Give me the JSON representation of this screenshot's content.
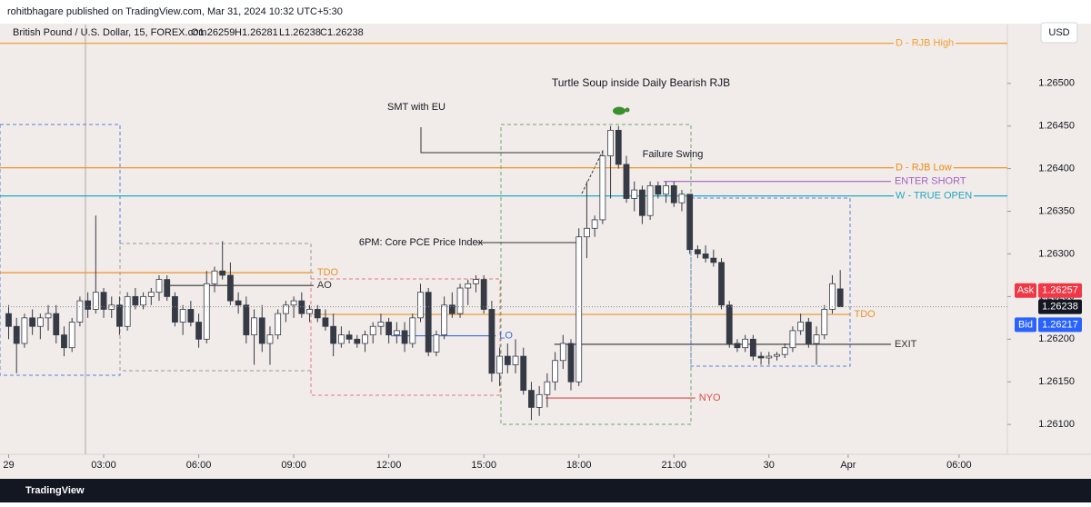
{
  "header": {
    "publisher": "rohitbhagare published on TradingView.com, Mar 31, 2024 10:32 UTC+5:30",
    "symbol": "British Pound / U.S. Dollar, 15, FOREX.com",
    "ohlc": [
      "O1.26259",
      "H1.26281",
      "L1.26238",
      "C1.26238"
    ],
    "currency": "USD",
    "footer": "TradingView"
  },
  "chart_data": {
    "type": "candlestick",
    "open": [
      1.2623,
      1.26215,
      1.26195,
      1.26225,
      1.26215,
      1.26225,
      1.2623,
      1.26205,
      1.2619,
      1.2622,
      1.26245,
      1.26235,
      1.26255,
      1.26235,
      1.2624,
      1.26215,
      1.2625,
      1.2624,
      1.2625,
      1.26255,
      1.2627,
      1.2625,
      1.2622,
      1.26235,
      1.2622,
      1.262,
      1.26265,
      1.2628,
      1.26275,
      1.26245,
      1.2624,
      1.26205,
      1.26225,
      1.26195,
      1.26205,
      1.2623,
      1.2624,
      1.26245,
      1.2623,
      1.26235,
      1.26225,
      1.26215,
      1.26195,
      1.26205,
      1.262,
      1.26195,
      1.26205,
      1.26215,
      1.2622,
      1.26205,
      1.2621,
      1.26195,
      1.26225,
      1.26255,
      1.26185,
      1.26205,
      1.2624,
      1.2623,
      1.2626,
      1.26265,
      1.2627,
      1.26235,
      1.2616,
      1.2618,
      1.2617,
      1.2618,
      1.2614,
      1.2612,
      1.26135,
      1.2615,
      1.26175,
      1.26195,
      1.2615,
      1.2632,
      1.2633,
      1.2634,
      1.26415,
      1.26445,
      1.26405,
      1.26365,
      1.26375,
      1.26345,
      1.2638,
      1.2637,
      1.2638,
      1.2636,
      1.2637,
      1.26305,
      1.263,
      1.26295,
      1.2629,
      1.2624,
      1.26195,
      1.2619,
      1.262,
      1.2618,
      1.26178,
      1.2618,
      1.26182,
      1.2619,
      1.2621,
      1.2622,
      1.26195,
      1.26205,
      1.26235,
      1.26259
    ],
    "high": [
      1.2624,
      1.26225,
      1.2623,
      1.26235,
      1.2623,
      1.2624,
      1.2624,
      1.26215,
      1.26225,
      1.2625,
      1.26255,
      1.26345,
      1.2626,
      1.2625,
      1.2625,
      1.26255,
      1.2626,
      1.26255,
      1.2626,
      1.26275,
      1.26275,
      1.26255,
      1.2624,
      1.26245,
      1.2623,
      1.2628,
      1.26285,
      1.26315,
      1.2629,
      1.26255,
      1.2625,
      1.26235,
      1.2624,
      1.26215,
      1.26235,
      1.26245,
      1.2625,
      1.26255,
      1.2624,
      1.2624,
      1.26235,
      1.2623,
      1.26215,
      1.2621,
      1.26205,
      1.2621,
      1.2622,
      1.2623,
      1.26225,
      1.2622,
      1.2622,
      1.2623,
      1.26265,
      1.2626,
      1.2621,
      1.2625,
      1.26255,
      1.26265,
      1.2627,
      1.26275,
      1.26275,
      1.26245,
      1.2619,
      1.26195,
      1.262,
      1.2619,
      1.2615,
      1.26145,
      1.2616,
      1.26185,
      1.26205,
      1.262,
      1.2633,
      1.26385,
      1.26345,
      1.2642,
      1.2645,
      1.2645,
      1.26415,
      1.26385,
      1.2638,
      1.26385,
      1.26385,
      1.26385,
      1.26385,
      1.26375,
      1.2637,
      1.2631,
      1.2631,
      1.26305,
      1.26295,
      1.26245,
      1.262,
      1.26205,
      1.26205,
      1.26185,
      1.26185,
      1.26185,
      1.26195,
      1.26215,
      1.2623,
      1.26225,
      1.26215,
      1.2624,
      1.26275,
      1.26281
    ],
    "low": [
      1.262,
      1.2616,
      1.2619,
      1.26205,
      1.262,
      1.2621,
      1.26195,
      1.2618,
      1.26185,
      1.26215,
      1.26225,
      1.2623,
      1.26225,
      1.26225,
      1.26205,
      1.2621,
      1.26235,
      1.26235,
      1.2624,
      1.26245,
      1.26245,
      1.26215,
      1.26205,
      1.26215,
      1.2619,
      1.26195,
      1.26255,
      1.2627,
      1.2624,
      1.2623,
      1.26195,
      1.2617,
      1.26185,
      1.2617,
      1.262,
      1.2622,
      1.26225,
      1.26225,
      1.2622,
      1.2622,
      1.2621,
      1.2618,
      1.2619,
      1.26195,
      1.2619,
      1.26185,
      1.26195,
      1.26205,
      1.26195,
      1.26195,
      1.26185,
      1.2619,
      1.2622,
      1.2618,
      1.2618,
      1.262,
      1.26225,
      1.26225,
      1.2624,
      1.26255,
      1.2623,
      1.2615,
      1.26145,
      1.2616,
      1.2616,
      1.26135,
      1.26105,
      1.2611,
      1.2612,
      1.2614,
      1.26165,
      1.2614,
      1.26145,
      1.26295,
      1.2632,
      1.26335,
      1.26365,
      1.264,
      1.2636,
      1.2635,
      1.26335,
      1.2634,
      1.26365,
      1.2636,
      1.26355,
      1.2635,
      1.263,
      1.26295,
      1.2629,
      1.26285,
      1.26235,
      1.2619,
      1.26185,
      1.26185,
      1.26175,
      1.2617,
      1.2617,
      1.26175,
      1.26178,
      1.26185,
      1.26205,
      1.2619,
      1.2617,
      1.262,
      1.2623,
      1.26238
    ],
    "close": [
      1.26215,
      1.26195,
      1.26225,
      1.26215,
      1.26225,
      1.2623,
      1.26205,
      1.2619,
      1.2622,
      1.26245,
      1.26235,
      1.26255,
      1.26235,
      1.2624,
      1.26215,
      1.2625,
      1.2624,
      1.2625,
      1.26255,
      1.2627,
      1.2625,
      1.2622,
      1.26235,
      1.2622,
      1.262,
      1.26265,
      1.2628,
      1.26275,
      1.26245,
      1.2624,
      1.26205,
      1.26225,
      1.26195,
      1.26205,
      1.2623,
      1.2624,
      1.26245,
      1.2623,
      1.26235,
      1.26225,
      1.26215,
      1.26195,
      1.26205,
      1.262,
      1.26195,
      1.26205,
      1.26215,
      1.2622,
      1.26205,
      1.2621,
      1.26195,
      1.26225,
      1.26255,
      1.26185,
      1.26205,
      1.2624,
      1.2623,
      1.2626,
      1.26265,
      1.2627,
      1.26235,
      1.2616,
      1.2618,
      1.2617,
      1.2618,
      1.2614,
      1.2612,
      1.26135,
      1.2615,
      1.26175,
      1.26195,
      1.2615,
      1.2632,
      1.2633,
      1.2634,
      1.26415,
      1.26445,
      1.26405,
      1.26365,
      1.26375,
      1.26345,
      1.2638,
      1.2637,
      1.2638,
      1.2636,
      1.2637,
      1.26305,
      1.263,
      1.26295,
      1.2629,
      1.2624,
      1.26195,
      1.2619,
      1.262,
      1.2618,
      1.26178,
      1.2618,
      1.26182,
      1.2619,
      1.2621,
      1.2622,
      1.26195,
      1.26205,
      1.26235,
      1.26265,
      1.26238
    ],
    "up_color": "#ffffff",
    "down_color": "#363a45",
    "xlim": [
      -1.09,
      126.1
    ],
    "ylim": [
      1.26065,
      1.26569
    ],
    "xticks": [
      {
        "value": 0,
        "label": "29"
      },
      {
        "value": 12,
        "label": "03:00"
      },
      {
        "value": 24,
        "label": "06:00"
      },
      {
        "value": 36,
        "label": "09:00"
      },
      {
        "value": 48,
        "label": "12:00"
      },
      {
        "value": 60,
        "label": "15:00"
      },
      {
        "value": 72,
        "label": "18:00"
      },
      {
        "value": 84,
        "label": "21:00"
      },
      {
        "value": 96,
        "label": "30"
      },
      {
        "value": 106,
        "label": "Apr"
      },
      {
        "value": 120,
        "label": "06:00"
      }
    ],
    "yticks": [
      {
        "value": 1.261,
        "label": "1.26100"
      },
      {
        "value": 1.2615,
        "label": "1.26150"
      },
      {
        "value": 1.262,
        "label": "1.26200"
      },
      {
        "value": 1.2625,
        "label": "1.26250"
      },
      {
        "value": 1.263,
        "label": "1.26300"
      },
      {
        "value": 1.2635,
        "label": "1.26350"
      },
      {
        "value": 1.264,
        "label": "1.26400"
      },
      {
        "value": 1.2645,
        "label": "1.26450"
      },
      {
        "value": 1.265,
        "label": "1.26500"
      }
    ],
    "levels": [
      {
        "label": "D - RJB High",
        "price": 1.26547,
        "start": -1.09,
        "end": 126.1,
        "color": "#f0a030"
      },
      {
        "label": "D - RJB Low",
        "price": 1.26401,
        "start": -1.09,
        "end": 126.1,
        "color": "#ef8a17"
      },
      {
        "label": "W - TRUE OPEN",
        "price": 1.26368,
        "start": -1.09,
        "end": 126.1,
        "color": "#22a7c0"
      },
      {
        "label": "ENTER SHORT",
        "price": 1.26385,
        "start": 82.7,
        "end": 111.4,
        "color": "#a461c0"
      },
      {
        "label": "EXIT",
        "price": 1.26194,
        "start": 68.9,
        "end": 111.4,
        "color": "#333333"
      },
      {
        "label": "TDO",
        "price": 1.26278,
        "start": -1.09,
        "end": 38.5,
        "color": "#e6952a"
      },
      {
        "label": "AO",
        "price": 1.26263,
        "start": 19.6,
        "end": 38.5,
        "color": "#333333"
      },
      {
        "label": "TDO",
        "price": 1.26229,
        "start": 38.5,
        "end": 106.3,
        "color": "#e6952a"
      },
      {
        "label": "LO",
        "price": 1.26204,
        "start": 48.3,
        "end": 61.5,
        "color": "#3f6cd3"
      },
      {
        "label": "NYO",
        "price": 1.26131,
        "start": 67.8,
        "end": 86.7,
        "color": "#e04848"
      }
    ],
    "annotations": [
      "Turtle Soup inside Daily Bearish RJB",
      "SMT with EU",
      "Failure Swing",
      "6PM: Core PCE Price Index"
    ],
    "price_tags": [
      {
        "label": "Ask",
        "value": 1.26257,
        "color": "#f23645"
      },
      {
        "value": 1.26238,
        "color": "#131722"
      },
      {
        "label": "Bid",
        "value": 1.26217,
        "color": "#2962ff"
      }
    ]
  }
}
